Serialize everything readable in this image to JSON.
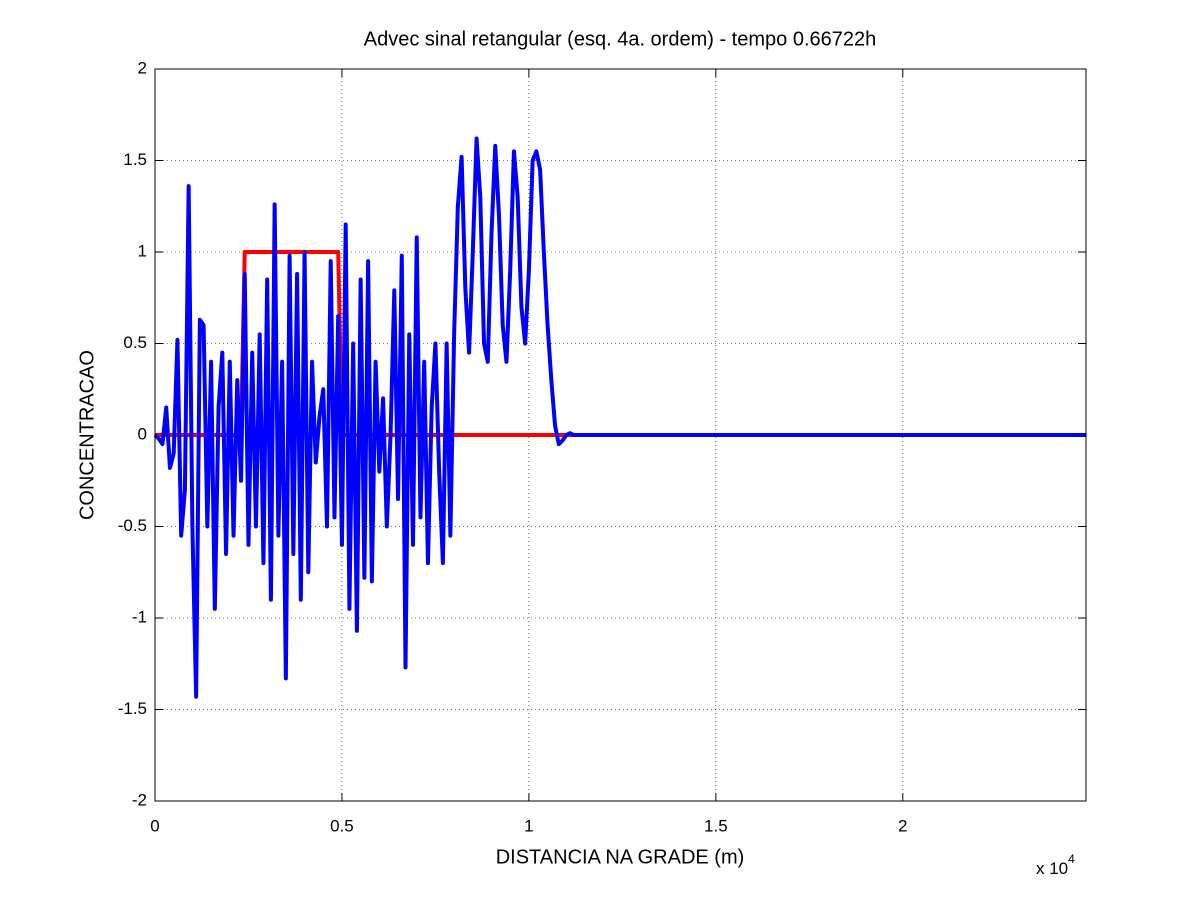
{
  "chart_data": {
    "type": "line",
    "title": "Advec sinal retangular (esq. 4a. ordem) - tempo 0.66722h",
    "x_label": "DISTANCIA NA GRADE (m)",
    "y_label": "CONCENTRACAO",
    "x_multiplier": {
      "base": "x 10",
      "exponent": "4"
    },
    "xlim": [
      0,
      24900
    ],
    "ylim": [
      -2,
      2
    ],
    "xticks": [
      0,
      {
        "value": 5000,
        "label": "0.5"
      },
      {
        "value": 10000,
        "label": "1"
      },
      {
        "value": 15000,
        "label": "1.5"
      },
      {
        "value": 20000,
        "label": "2"
      }
    ],
    "yticks": [
      -2,
      -1.5,
      -1,
      -0.5,
      0,
      0.5,
      1,
      1.5,
      2
    ],
    "grid": true,
    "x": [
      0,
      100,
      200,
      300,
      400,
      500,
      600,
      700,
      800,
      900,
      1000,
      1100,
      1200,
      1300,
      1400,
      1500,
      1600,
      1700,
      1800,
      1900,
      2000,
      2100,
      2200,
      2300,
      2400,
      2500,
      2600,
      2700,
      2800,
      2900,
      3000,
      3100,
      3200,
      3300,
      3400,
      3500,
      3600,
      3700,
      3800,
      3900,
      4000,
      4100,
      4200,
      4300,
      4400,
      4500,
      4600,
      4700,
      4800,
      4900,
      5000,
      5100,
      5200,
      5300,
      5400,
      5500,
      5600,
      5700,
      5800,
      5900,
      6000,
      6100,
      6200,
      6300,
      6400,
      6500,
      6600,
      6700,
      6800,
      6900,
      7000,
      7100,
      7200,
      7300,
      7400,
      7500,
      7600,
      7700,
      7800,
      7900,
      8000,
      8100,
      8200,
      8300,
      8400,
      8500,
      8600,
      8700,
      8800,
      8900,
      9000,
      9100,
      9200,
      9300,
      9400,
      9500,
      9600,
      9700,
      9800,
      9900,
      10000,
      10100,
      10200,
      10300,
      10400,
      10500,
      10600,
      10700,
      10800,
      10900,
      11000,
      11100,
      11200,
      11300,
      11400,
      11500,
      11600,
      11700,
      11800,
      11900,
      12000,
      24900
    ],
    "series": [
      {
        "color": "#ff0000",
        "values": [
          0,
          0,
          0,
          0,
          0,
          0,
          0,
          0,
          0,
          0,
          0,
          0,
          0,
          0,
          0,
          0,
          0,
          0,
          0,
          0,
          0,
          0,
          0,
          0,
          1,
          1,
          1,
          1,
          1,
          1,
          1,
          1,
          1,
          1,
          1,
          1,
          1,
          1,
          1,
          1,
          1,
          1,
          1,
          1,
          1,
          1,
          1,
          1,
          1,
          1,
          0,
          0,
          0,
          0,
          0,
          0,
          0,
          0,
          0,
          0,
          0,
          0,
          0,
          0,
          0,
          0,
          0,
          0,
          0,
          0,
          0,
          0,
          0,
          0,
          0,
          0,
          0,
          0,
          0,
          0,
          0,
          0,
          0,
          0,
          0,
          0,
          0,
          0,
          0,
          0,
          0,
          0,
          0,
          0,
          0,
          0,
          0,
          0,
          0,
          0,
          0,
          0,
          0,
          0,
          0,
          0,
          0,
          0,
          0,
          0,
          0,
          0,
          0,
          0,
          0,
          0,
          0,
          0,
          0,
          0,
          0,
          0
        ]
      },
      {
        "color": "#0000ff",
        "values": [
          0,
          -0.02,
          -0.05,
          0.15,
          -0.18,
          -0.1,
          0.52,
          -0.55,
          -0.3,
          1.36,
          -0.5,
          -1.43,
          0.63,
          0.6,
          -0.5,
          0.4,
          -0.95,
          0.15,
          0.45,
          -0.65,
          0.4,
          -0.55,
          0.3,
          -0.25,
          0.88,
          -0.6,
          0.45,
          -0.5,
          0.55,
          -0.7,
          0.85,
          -0.9,
          1.26,
          -0.55,
          0.4,
          -1.33,
          0.98,
          -0.65,
          0.88,
          -0.9,
          1.0,
          -0.75,
          0.4,
          -0.15,
          0.1,
          0.25,
          -0.5,
          0.95,
          -0.45,
          0.65,
          -0.6,
          1.15,
          -0.95,
          0.5,
          -1.07,
          0.85,
          -0.78,
          0.95,
          -0.8,
          0.4,
          -0.2,
          0.2,
          -0.5,
          0,
          0.79,
          -0.35,
          0.98,
          -1.27,
          0.55,
          -0.6,
          1.08,
          -0.45,
          0.4,
          -0.7,
          0.15,
          0.5,
          -0.2,
          -0.7,
          0.5,
          -0.55,
          0.55,
          1.25,
          1.52,
          0.8,
          0.45,
          1.0,
          1.62,
          1.3,
          0.5,
          0.4,
          1.1,
          1.58,
          1.2,
          0.6,
          0.4,
          0.9,
          1.55,
          1.3,
          0.7,
          0.5,
          0.9,
          1.5,
          1.55,
          1.45,
          1.0,
          0.6,
          0.3,
          0.05,
          -0.05,
          -0.03,
          0,
          0.01,
          0,
          0,
          0,
          0,
          0,
          0,
          0,
          0,
          0,
          0
        ]
      }
    ]
  }
}
